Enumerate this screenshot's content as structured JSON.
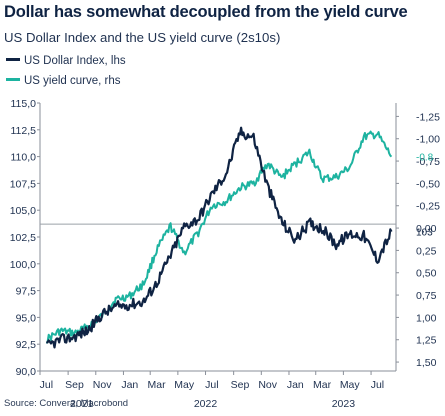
{
  "header": {
    "title": "Dollar has somewhat decoupled from the yield curve",
    "subtitle": "US Dollar Index and the US yield curve (2s10s)"
  },
  "legend": {
    "items": [
      {
        "label": "US Dollar Index, lhs",
        "color": "#0f2343"
      },
      {
        "label": "US yield curve, rhs",
        "color": "#1db3a0"
      }
    ]
  },
  "source": "Source: Convera, Macrobond",
  "chart_data": {
    "type": "line",
    "title": "Dollar has somewhat decoupled from the yield curve",
    "subtitle": "US Dollar Index and the US yield curve (2s10s)",
    "grid": false,
    "reference_line": {
      "axis": "left",
      "value": 103.7
    },
    "left_axis": {
      "ylim": [
        90,
        115
      ],
      "ticks": [
        "115,0",
        "112,5",
        "110,0",
        "107,5",
        "105,0",
        "102,5",
        "100,0",
        "97,5",
        "95,0",
        "92,5",
        "90,0"
      ]
    },
    "right_axis": {
      "inverted": true,
      "ylim": [
        -1.4,
        1.6
      ],
      "ticks": [
        "-1,25",
        "-1,00",
        "-0,75",
        "-0,50",
        "-0,25",
        "0,00",
        "0,25",
        "0,50",
        "0,75",
        "1,00",
        "1,25",
        "1,50"
      ]
    },
    "x_axis": {
      "month_labels": [
        "Jul",
        "Sep",
        "Nov",
        "Jan",
        "Mar",
        "May",
        "Jul",
        "Sep",
        "Nov",
        "Jan",
        "Mar",
        "May",
        "Jul"
      ],
      "year_labels": [
        "2021",
        "2022",
        "2023"
      ]
    },
    "end_labels": {
      "left_value": "103",
      "right_value": "-0.8"
    },
    "series": [
      {
        "name": "US Dollar Index, lhs",
        "axis": "left",
        "color": "#0f2343",
        "points": [
          [
            "2021-07",
            92.3
          ],
          [
            "2021-08",
            92.9
          ],
          [
            "2021-09",
            93.2
          ],
          [
            "2021-10",
            93.8
          ],
          [
            "2021-11",
            95.3
          ],
          [
            "2021-12",
            96.0
          ],
          [
            "2022-01",
            96.2
          ],
          [
            "2022-02",
            96.5
          ],
          [
            "2022-03",
            98.2
          ],
          [
            "2022-04",
            100.8
          ],
          [
            "2022-05",
            103.5
          ],
          [
            "2022-06",
            104.2
          ],
          [
            "2022-07",
            106.5
          ],
          [
            "2022-08",
            108.4
          ],
          [
            "2022-09",
            112.3
          ],
          [
            "2022-10",
            111.8
          ],
          [
            "2022-11",
            107.2
          ],
          [
            "2022-12",
            104.0
          ],
          [
            "2023-01",
            102.2
          ],
          [
            "2023-02",
            103.8
          ],
          [
            "2023-03",
            103.3
          ],
          [
            "2023-04",
            101.8
          ],
          [
            "2023-05",
            102.8
          ],
          [
            "2023-06",
            102.6
          ],
          [
            "2023-07",
            100.4
          ],
          [
            "2023-08",
            103.0
          ]
        ]
      },
      {
        "name": "US yield curve, rhs",
        "axis": "right",
        "color": "#1db3a0",
        "points": [
          [
            "2021-07",
            1.25
          ],
          [
            "2021-08",
            1.15
          ],
          [
            "2021-09",
            1.18
          ],
          [
            "2021-10",
            1.1
          ],
          [
            "2021-11",
            0.98
          ],
          [
            "2021-12",
            0.8
          ],
          [
            "2022-01",
            0.76
          ],
          [
            "2022-02",
            0.62
          ],
          [
            "2022-03",
            0.25
          ],
          [
            "2022-04",
            -0.02
          ],
          [
            "2022-05",
            0.28
          ],
          [
            "2022-06",
            0.05
          ],
          [
            "2022-07",
            -0.25
          ],
          [
            "2022-08",
            -0.3
          ],
          [
            "2022-09",
            -0.45
          ],
          [
            "2022-10",
            -0.5
          ],
          [
            "2022-11",
            -0.72
          ],
          [
            "2022-12",
            -0.56
          ],
          [
            "2023-01",
            -0.72
          ],
          [
            "2023-02",
            -0.85
          ],
          [
            "2023-03",
            -0.55
          ],
          [
            "2023-04",
            -0.57
          ],
          [
            "2023-05",
            -0.68
          ],
          [
            "2023-06",
            -1.02
          ],
          [
            "2023-07",
            -1.05
          ],
          [
            "2023-08",
            -0.8
          ]
        ]
      }
    ]
  }
}
